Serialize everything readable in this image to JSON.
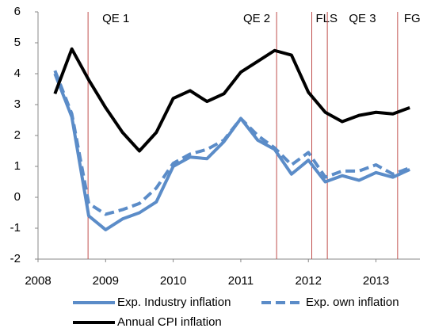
{
  "chart_data": {
    "type": "line",
    "x": [
      2008.25,
      2008.5,
      2008.75,
      2009.0,
      2009.25,
      2009.5,
      2009.75,
      2010.0,
      2010.25,
      2010.5,
      2010.75,
      2011.0,
      2011.25,
      2011.5,
      2011.75,
      2012.0,
      2012.25,
      2012.5,
      2012.75,
      2013.0,
      2013.25,
      2013.5
    ],
    "series": [
      {
        "name": "Exp. Industry inflation",
        "color": "#5b8cc8",
        "dash": false,
        "values": [
          4.0,
          2.6,
          -0.6,
          -1.05,
          -0.7,
          -0.5,
          -0.15,
          1.0,
          1.3,
          1.25,
          1.8,
          2.55,
          1.85,
          1.55,
          0.75,
          1.2,
          0.5,
          0.7,
          0.55,
          0.8,
          0.65,
          0.9
        ]
      },
      {
        "name": "Exp. own inflation",
        "color": "#5b8cc8",
        "dash": true,
        "values": [
          4.1,
          2.7,
          -0.2,
          -0.55,
          -0.4,
          -0.2,
          0.3,
          1.1,
          1.4,
          1.55,
          1.85,
          2.55,
          2.0,
          1.6,
          1.05,
          1.45,
          0.65,
          0.85,
          0.85,
          1.05,
          0.75,
          0.95
        ]
      },
      {
        "name": "Annual CPI inflation",
        "color": "#000000",
        "dash": false,
        "values": [
          3.35,
          4.8,
          3.8,
          2.9,
          2.1,
          1.5,
          2.1,
          3.2,
          3.45,
          3.1,
          3.35,
          4.05,
          4.4,
          4.75,
          4.6,
          3.4,
          2.75,
          2.45,
          2.65,
          2.75,
          2.7,
          2.9
        ]
      }
    ],
    "events": [
      {
        "x": 2008.74,
        "label": "QE 1"
      },
      {
        "x": 2011.53,
        "label": "QE 2"
      },
      {
        "x": 2012.05,
        "label": "FLS"
      },
      {
        "x": 2012.28,
        "label": "QE 3"
      },
      {
        "x": 2013.32,
        "label": "FG"
      }
    ],
    "event_color": "#c0504d",
    "xlim": [
      2008,
      2013.65
    ],
    "xticks": [
      2008,
      2009,
      2010,
      2011,
      2012,
      2013
    ],
    "ylim": [
      -2,
      6
    ],
    "yticks": [
      -2,
      -1,
      0,
      1,
      2,
      3,
      4,
      5,
      6
    ],
    "grid": false,
    "legend": "bottom"
  }
}
